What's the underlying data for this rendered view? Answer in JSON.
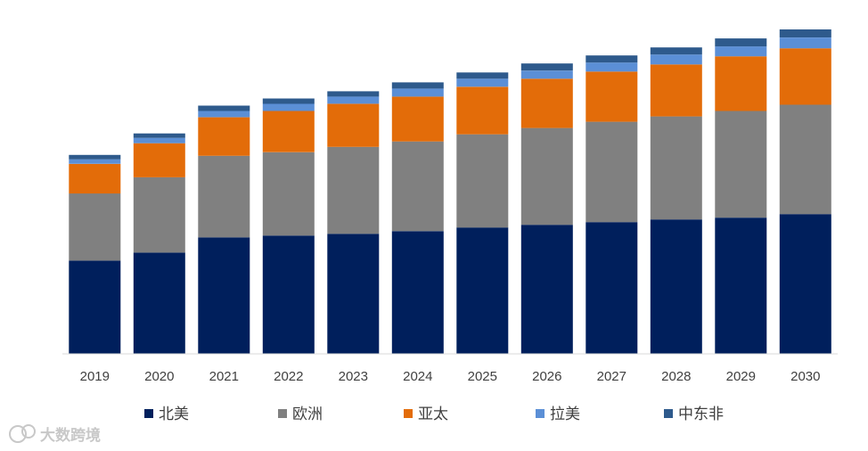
{
  "chart_data": {
    "type": "bar",
    "stacked": true,
    "title": "",
    "xlabel": "",
    "ylabel": "",
    "categories": [
      "2019",
      "2020",
      "2021",
      "2022",
      "2023",
      "2024",
      "2025",
      "2026",
      "2027",
      "2028",
      "2029",
      "2030"
    ],
    "ylim": [
      0,
      370
    ],
    "grid": false,
    "legend_position": "bottom",
    "series": [
      {
        "name": "北美",
        "color": "#001f5c",
        "values": [
          104,
          113,
          130,
          132,
          134,
          137,
          141,
          144,
          147,
          150,
          152,
          156
        ]
      },
      {
        "name": "欧洲",
        "color": "#808080",
        "values": [
          75,
          84,
          91,
          93,
          97,
          100,
          104,
          108,
          112,
          115,
          119,
          122
        ]
      },
      {
        "name": "亚太",
        "color": "#e36c09",
        "values": [
          33,
          38,
          43,
          46,
          48,
          50,
          53,
          55,
          56,
          58,
          61,
          63
        ]
      },
      {
        "name": "拉美",
        "color": "#5b8fd6",
        "values": [
          5,
          6,
          7,
          8,
          8,
          9,
          9,
          9,
          10,
          11,
          11,
          12
        ]
      },
      {
        "name": "中东非",
        "color": "#2e5a8c",
        "values": [
          5,
          5,
          6,
          6,
          6,
          7,
          7,
          8,
          8,
          8,
          9,
          9
        ]
      }
    ]
  },
  "watermark": {
    "text": "大数跨境",
    "icon": "watermark-logo-icon"
  }
}
